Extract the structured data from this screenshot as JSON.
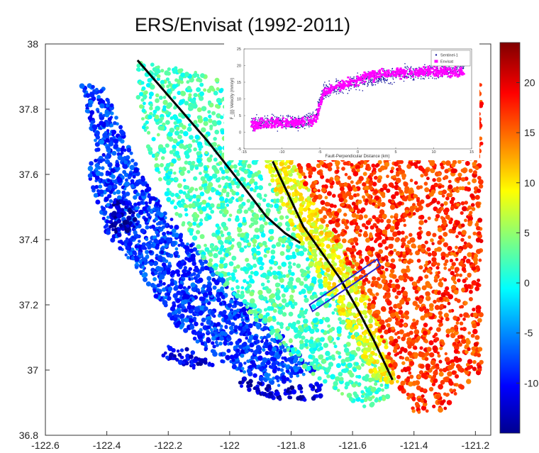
{
  "chart_data": [
    {
      "type": "scatter",
      "title": "ERS/Envisat (1992-2011)",
      "xlabel": "",
      "ylabel": "",
      "xlim": [
        -122.6,
        -121.15
      ],
      "ylim": [
        36.8,
        38.0
      ],
      "x_ticks": [
        -122.6,
        -122.4,
        -122.2,
        -122,
        -121.8,
        -121.6,
        -121.4,
        -121.2
      ],
      "x_tick_labels": [
        "-122.6",
        "-122.4",
        "-122.2",
        "-122",
        "-121.8",
        "-121.6",
        "-121.4",
        "-121.2"
      ],
      "y_ticks": [
        36.8,
        37,
        37.2,
        37.4,
        37.6,
        37.8,
        38
      ],
      "y_tick_labels": [
        "36.8",
        "37",
        "37.2",
        "37.4",
        "37.6",
        "37.8",
        "38"
      ],
      "colorbar": {
        "colormap": "jet",
        "range": [
          -15,
          24
        ],
        "ticks": [
          20,
          15,
          10,
          5,
          0,
          -5,
          -10
        ],
        "tick_labels": [
          "20",
          "15",
          "10",
          "5",
          "0",
          "-5",
          "-10"
        ]
      },
      "velocity_field": {
        "description_free": true,
        "regions": [
          {
            "polygon": [
              [
                -122.49,
                37.88
              ],
              [
                -122.44,
                37.7
              ],
              [
                -122.46,
                37.6
              ],
              [
                -122.4,
                37.42
              ],
              [
                -122.28,
                37.28
              ],
              [
                -122.16,
                37.12
              ],
              [
                -122.02,
                37.02
              ],
              [
                -121.84,
                36.95
              ],
              [
                -121.72,
                37.0
              ],
              [
                -121.82,
                37.1
              ],
              [
                -121.96,
                37.22
              ],
              [
                -122.08,
                37.34
              ],
              [
                -122.2,
                37.48
              ],
              [
                -122.3,
                37.62
              ],
              [
                -122.36,
                37.76
              ],
              [
                -122.4,
                37.86
              ]
            ],
            "value": -8
          },
          {
            "polygon": [
              [
                -122.3,
                37.95
              ],
              [
                -122.04,
                37.9
              ],
              [
                -121.95,
                37.72
              ],
              [
                -121.84,
                37.52
              ],
              [
                -121.72,
                37.34
              ],
              [
                -121.62,
                37.18
              ],
              [
                -121.52,
                37.02
              ],
              [
                -121.47,
                36.92
              ],
              [
                -121.56,
                36.88
              ],
              [
                -121.72,
                36.98
              ],
              [
                -121.86,
                37.1
              ],
              [
                -121.98,
                37.22
              ],
              [
                -122.1,
                37.36
              ],
              [
                -122.2,
                37.52
              ],
              [
                -122.26,
                37.66
              ],
              [
                -122.3,
                37.82
              ]
            ],
            "value": 2
          },
          {
            "polygon": [
              [
                -121.98,
                37.9
              ],
              [
                -121.84,
                37.88
              ],
              [
                -121.78,
                37.62
              ],
              [
                -121.68,
                37.44
              ],
              [
                -121.58,
                37.3
              ],
              [
                -121.5,
                37.12
              ],
              [
                -121.45,
                36.96
              ],
              [
                -121.52,
                36.96
              ],
              [
                -121.62,
                37.14
              ],
              [
                -121.72,
                37.3
              ],
              [
                -121.82,
                37.48
              ],
              [
                -121.9,
                37.66
              ]
            ],
            "value": 9
          },
          {
            "polygon": [
              [
                -121.8,
                37.88
              ],
              [
                -121.18,
                37.88
              ],
              [
                -121.18,
                37.0
              ],
              [
                -121.3,
                36.88
              ],
              [
                -121.4,
                36.86
              ],
              [
                -121.46,
                36.96
              ],
              [
                -121.52,
                37.14
              ],
              [
                -121.6,
                37.3
              ],
              [
                -121.7,
                37.46
              ],
              [
                -121.78,
                37.62
              ]
            ],
            "value": 17
          },
          {
            "polygon": [
              [
                -122.38,
                37.52
              ],
              [
                -122.32,
                37.52
              ],
              [
                -122.3,
                37.44
              ],
              [
                -122.36,
                37.4
              ],
              [
                -122.4,
                37.44
              ]
            ],
            "value": -13
          },
          {
            "polygon": [
              [
                -121.98,
                36.99
              ],
              [
                -121.84,
                36.94
              ],
              [
                -121.7,
                36.96
              ],
              [
                -121.68,
                36.92
              ],
              [
                -121.8,
                36.9
              ],
              [
                -121.96,
                36.94
              ]
            ],
            "value": -12
          },
          {
            "polygon": [
              [
                -122.22,
                37.04
              ],
              [
                -122.1,
                37.0
              ],
              [
                -122.04,
                37.02
              ],
              [
                -122.12,
                37.06
              ],
              [
                -122.2,
                37.08
              ]
            ],
            "value": -11
          }
        ]
      },
      "fault_traces": [
        {
          "points": [
            [
              -122.3,
              37.95
            ],
            [
              -122.18,
              37.82
            ],
            [
              -122.07,
              37.7
            ],
            [
              -121.97,
              37.58
            ],
            [
              -121.88,
              37.47
            ],
            [
              -121.82,
              37.42
            ],
            [
              -121.77,
              37.39
            ]
          ]
        },
        {
          "points": [
            [
              -121.86,
              37.64
            ],
            [
              -121.8,
              37.52
            ],
            [
              -121.76,
              37.44
            ],
            [
              -121.7,
              37.36
            ],
            [
              -121.64,
              37.28
            ],
            [
              -121.58,
              37.18
            ],
            [
              -121.53,
              37.09
            ],
            [
              -121.47,
              36.97
            ]
          ]
        }
      ],
      "profile_box": {
        "corners": [
          [
            -121.74,
            37.2
          ],
          [
            -121.52,
            37.34
          ],
          [
            -121.51,
            37.32
          ],
          [
            -121.73,
            37.18
          ]
        ]
      }
    },
    {
      "type": "scatter",
      "title": "",
      "xlabel": "Fault-Perpendicular Distance (km)",
      "ylabel": "F_{||} Velocity (mm/yr)",
      "xlim": [
        -15,
        15
      ],
      "ylim": [
        -5,
        25
      ],
      "x_ticks": [
        -15,
        -10,
        -5,
        0,
        5,
        10,
        15
      ],
      "x_tick_labels": [
        "-15",
        "-10",
        "-5",
        "0",
        "5",
        "10",
        "15"
      ],
      "y_ticks": [
        -5,
        0,
        5,
        10,
        15,
        20,
        25
      ],
      "y_tick_labels": [
        "-5",
        "0",
        "5",
        "10",
        "15",
        "20",
        "25"
      ],
      "legend": "top-right",
      "series": [
        {
          "name": "Sentinel-1",
          "color": "#1a1aa0",
          "profile": [
            [
              -14,
              2.5
            ],
            [
              -12,
              2.8
            ],
            [
              -10,
              3.0
            ],
            [
              -8,
              3.0
            ],
            [
              -6.5,
              3.2
            ],
            [
              -5.5,
              5
            ],
            [
              -5,
              9
            ],
            [
              -4.5,
              12
            ],
            [
              -3,
              13.5
            ],
            [
              -1,
              14.5
            ],
            [
              1,
              15.5
            ],
            [
              3,
              16.5
            ],
            [
              5,
              17.5
            ],
            [
              8,
              18
            ],
            [
              11,
              18.5
            ],
            [
              14,
              19
            ]
          ],
          "spread": 2.2
        },
        {
          "name": "Envisat",
          "color": "#ff00ff",
          "profile": [
            [
              -14,
              2.2
            ],
            [
              -12,
              2.5
            ],
            [
              -10,
              2.8
            ],
            [
              -8,
              2.8
            ],
            [
              -6.5,
              3.0
            ],
            [
              -5.5,
              4
            ],
            [
              -5,
              8
            ],
            [
              -4.5,
              11.5
            ],
            [
              -3,
              13.5
            ],
            [
              -1,
              15
            ],
            [
              1,
              16.5
            ],
            [
              3,
              17.5
            ],
            [
              5,
              18
            ],
            [
              8,
              18
            ],
            [
              11,
              18
            ],
            [
              14,
              18
            ]
          ],
          "spread": 1.4
        }
      ]
    }
  ]
}
